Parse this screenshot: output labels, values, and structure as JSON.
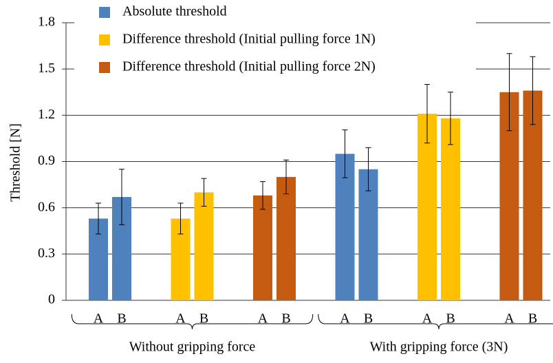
{
  "chart_data": {
    "type": "bar",
    "y_label": "Threshold [N]",
    "categories": [
      "A",
      "B",
      "A",
      "B",
      "A",
      "B",
      "A",
      "B",
      "A",
      "B",
      "A",
      "B"
    ],
    "groups": [
      "Without gripping force",
      "With gripping force (3N)"
    ],
    "series": [
      {
        "name": "Absolute threshold",
        "color": "#4f81bd",
        "values": [
          0.53,
          0.67,
          null,
          null,
          null,
          null,
          0.95,
          0.85,
          null,
          null,
          null,
          null
        ],
        "errors": [
          0.1,
          0.18,
          null,
          null,
          null,
          null,
          0.155,
          0.14,
          null,
          null,
          null,
          null
        ]
      },
      {
        "name": "Difference threshold (Initial pulling force 1N)",
        "color": "#ffc000",
        "values": [
          null,
          null,
          0.53,
          0.7,
          null,
          null,
          null,
          null,
          1.21,
          1.18,
          null,
          null
        ],
        "errors": [
          null,
          null,
          0.1,
          0.09,
          null,
          null,
          null,
          null,
          0.19,
          0.17,
          null,
          null
        ]
      },
      {
        "name": "Difference threshold (Initial pulling force 2N)",
        "color": "#c55a11",
        "values": [
          null,
          null,
          null,
          null,
          0.68,
          0.8,
          null,
          null,
          null,
          null,
          1.35,
          1.36
        ],
        "errors": [
          null,
          null,
          null,
          null,
          0.09,
          0.11,
          null,
          null,
          null,
          null,
          0.25,
          0.22
        ]
      }
    ],
    "ylim": [
      0,
      1.8
    ],
    "yticks": [
      0,
      0.3,
      0.6,
      0.9,
      1.2,
      1.5,
      1.8
    ],
    "grid": true,
    "legend": "upper left",
    "error_bars": true
  }
}
